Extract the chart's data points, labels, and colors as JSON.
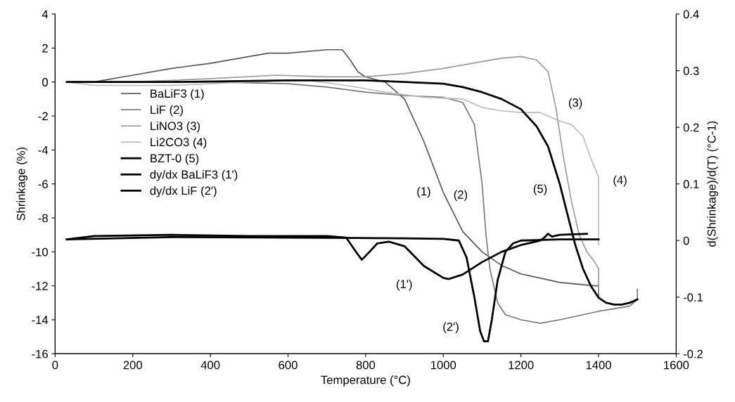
{
  "chart_data": {
    "type": "line",
    "xlabel": "Temperature (°C)",
    "ylabel": "Shrinkage (%)",
    "y2label": "d(Shrinkage)/d(T) (°C-1)",
    "xlim": [
      0,
      1600
    ],
    "xticks": [
      0,
      200,
      400,
      600,
      800,
      1000,
      1200,
      1400,
      1600
    ],
    "ylim": [
      -16,
      4
    ],
    "yticks": [
      -16,
      -14,
      -12,
      -10,
      -8,
      -6,
      -4,
      -2,
      0,
      2,
      4
    ],
    "y2lim": [
      -0.2,
      0.4
    ],
    "y2ticks": [
      {
        "value": -0.2,
        "label": "-0.2"
      },
      {
        "value": -0.1,
        "label": "-0.1"
      },
      0,
      0.1,
      0.2,
      0.3,
      0.4
    ],
    "grid": false,
    "legend": "left",
    "marker": "none",
    "line_style": "solid",
    "series": [
      {
        "name": "BaLiF3 (1)",
        "color": "#555555",
        "x": [
          30,
          100,
          200,
          300,
          400,
          500,
          550,
          600,
          700,
          740,
          760,
          780,
          800,
          850,
          900,
          950,
          1000,
          1050,
          1100,
          1150,
          1200,
          1300,
          1390,
          1400,
          1400
        ],
        "values": [
          0,
          0,
          0.4,
          0.8,
          1.1,
          1.5,
          1.7,
          1.7,
          1.9,
          1.9,
          1.3,
          0.6,
          0.3,
          0,
          -1,
          -3.5,
          -6.5,
          -8.8,
          -10,
          -10.8,
          -11.3,
          -11.8,
          -12,
          -12,
          -12.6
        ]
      },
      {
        "name": "LiF (2)",
        "color": "#777777",
        "x": [
          30,
          200,
          400,
          600,
          700,
          800,
          900,
          1000,
          1050,
          1080,
          1100,
          1110,
          1120,
          1140,
          1160,
          1200,
          1250,
          1300,
          1400,
          1480,
          1500,
          1500
        ],
        "values": [
          0,
          0,
          0,
          -0.1,
          -0.3,
          -0.6,
          -0.8,
          -0.9,
          -1.2,
          -2.5,
          -6,
          -9,
          -11,
          -13,
          -13.7,
          -14,
          -14.2,
          -14,
          -13.5,
          -13.2,
          -12.8,
          -12.2
        ]
      },
      {
        "name": "LiNO3 (3)",
        "color": "#999999",
        "x": [
          30,
          200,
          400,
          570,
          700,
          800,
          900,
          1000,
          1100,
          1150,
          1200,
          1240,
          1270,
          1290,
          1310,
          1330,
          1350,
          1370,
          1390,
          1400,
          1400
        ],
        "values": [
          0,
          0,
          0.2,
          0.4,
          0.3,
          0.3,
          0.5,
          0.8,
          1.2,
          1.4,
          1.5,
          1.3,
          0.6,
          -1.5,
          -4.5,
          -7,
          -9,
          -10,
          -10.6,
          -11,
          -12.5
        ]
      },
      {
        "name": "Li2CO3 (4)",
        "color": "#bbbbbb",
        "x": [
          30,
          100,
          300,
          500,
          650,
          750,
          850,
          950,
          1050,
          1100,
          1150,
          1200,
          1250,
          1300,
          1330,
          1360,
          1380,
          1400,
          1400
        ],
        "values": [
          0,
          -0.2,
          -0.2,
          0,
          0.1,
          -0.2,
          -0.6,
          -0.9,
          -1,
          -1.5,
          -1.7,
          -1.8,
          -1.8,
          -2.3,
          -2.5,
          -3.2,
          -4.5,
          -5.6,
          -9.6
        ]
      },
      {
        "name": "BZT-0 (5)",
        "color": "#000000",
        "x": [
          30,
          300,
          600,
          800,
          900,
          1000,
          1050,
          1100,
          1150,
          1200,
          1240,
          1270,
          1300,
          1320,
          1340,
          1360,
          1380,
          1400,
          1420,
          1440,
          1460,
          1480,
          1500
        ],
        "values": [
          0,
          0,
          0.1,
          0.1,
          0,
          -0.1,
          -0.3,
          -0.6,
          -1,
          -1.6,
          -2.6,
          -3.8,
          -6,
          -7.8,
          -9.6,
          -11,
          -12,
          -12.7,
          -13,
          -13.1,
          -13.1,
          -13,
          -12.8
        ]
      },
      {
        "name": "dy/dx BaLiF3 (1')",
        "color": "#000000",
        "axis": "y2",
        "x": [
          30,
          100,
          300,
          500,
          700,
          750,
          770,
          790,
          810,
          830,
          860,
          900,
          950,
          1000,
          1014,
          1050,
          1100,
          1150,
          1200,
          1250,
          1260,
          1270,
          1280,
          1300,
          1370
        ],
        "values": [
          0.002,
          0.008,
          0.01,
          0.008,
          0.008,
          0.005,
          -0.015,
          -0.034,
          -0.02,
          -0.005,
          -0.002,
          -0.01,
          -0.045,
          -0.066,
          -0.068,
          -0.06,
          -0.038,
          -0.02,
          -0.008,
          0,
          0.005,
          0.012,
          0.007,
          0.01,
          0.012
        ]
      },
      {
        "name": "dy/dx LiF (2')",
        "color": "#000000",
        "axis": "y2",
        "x": [
          30,
          300,
          600,
          900,
          1000,
          1040,
          1060,
          1080,
          1095,
          1105,
          1115,
          1125,
          1140,
          1160,
          1180,
          1200,
          1300,
          1400
        ],
        "values": [
          0.002,
          0.006,
          0.005,
          0.004,
          0.003,
          0,
          -0.03,
          -0.1,
          -0.16,
          -0.178,
          -0.178,
          -0.14,
          -0.07,
          -0.02,
          -0.005,
          0,
          0.002,
          0.002
        ]
      }
    ],
    "annotations": [
      {
        "text": "(1)",
        "x": 1000,
        "y": -6.5
      },
      {
        "text": "(2)",
        "x": 1100,
        "y": -6
      },
      {
        "text": "(3)",
        "x": 1290,
        "y": -1.5
      },
      {
        "text": "(4)",
        "x": 1400,
        "y": -5.6
      },
      {
        "text": "(5)",
        "x": 1300,
        "y": -6
      },
      {
        "text": "(1')",
        "x": 1000,
        "y": -11.5
      },
      {
        "text": "(2')",
        "x": 1095,
        "y": -14.7
      }
    ]
  }
}
